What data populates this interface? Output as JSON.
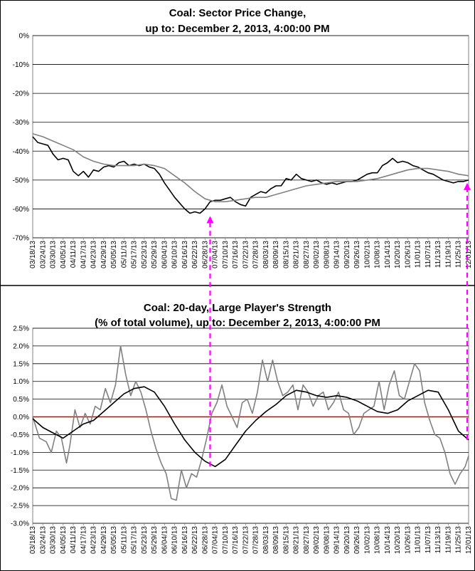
{
  "chart_data": [
    {
      "type": "line",
      "title": "Coal: Sector Price Change,",
      "subtitle": "up to: December 2, 2013, 4:00:00 PM",
      "xlabel": "",
      "ylabel": "",
      "ylim": [
        -70,
        0
      ],
      "yticks": [
        "0%",
        "-10%",
        "-20%",
        "-30%",
        "-40%",
        "-50%",
        "-60%",
        "-70%"
      ],
      "grid": true,
      "legend": "none",
      "series": [
        {
          "color": "#000000",
          "x": [
            0,
            3,
            6,
            9,
            12,
            15,
            18,
            21,
            24,
            27,
            30,
            33,
            36,
            39,
            42,
            45,
            48,
            51,
            54,
            57,
            60,
            63,
            66,
            69,
            72,
            75,
            78,
            81,
            84,
            87,
            90,
            93,
            96,
            99,
            102,
            105,
            108,
            111,
            114,
            117,
            120,
            123,
            126,
            129,
            132,
            135,
            138,
            141,
            144,
            147,
            150,
            153,
            156,
            159,
            162,
            165,
            168,
            171,
            174,
            177,
            180,
            183,
            186,
            189,
            192,
            195,
            198,
            201,
            204,
            207,
            210,
            213,
            216,
            219,
            222,
            225,
            228,
            231,
            234,
            237,
            240,
            243,
            246,
            249,
            252,
            255,
            258
          ],
          "values": [
            -35,
            -37,
            -37.5,
            -38,
            -41,
            -43,
            -42.5,
            -43,
            -47,
            -48.5,
            -47,
            -49,
            -46.5,
            -47,
            -45.5,
            -45,
            -45.5,
            -44,
            -43.5,
            -45,
            -44.5,
            -45,
            -44.5,
            -45.5,
            -46,
            -48,
            -51,
            -53.5,
            -56,
            -58,
            -60,
            -61.5,
            -61,
            -61.5,
            -60,
            -57.5,
            -57,
            -57,
            -56.5,
            -56,
            -57.5,
            -58.5,
            -59,
            -56,
            -55,
            -54,
            -54.5,
            -53,
            -52,
            -52,
            -49.5,
            -50,
            -48,
            -49.5,
            -50,
            -50.5,
            -50,
            -51,
            -51.5,
            -51,
            -51.5,
            -51,
            -50.5,
            -50.5,
            -50,
            -49,
            -48,
            -47.5,
            -47.5,
            -45,
            -44,
            -42.5,
            -44,
            -43.5,
            -44,
            -45,
            -45.5,
            -46.5,
            -47.5,
            -48,
            -49,
            -50,
            -50.5,
            -51,
            -50.5,
            -50.5,
            -50
          ]
        },
        {
          "color": "#808080",
          "x": [
            0,
            6,
            12,
            18,
            24,
            30,
            36,
            42,
            48,
            54,
            60,
            66,
            72,
            78,
            84,
            90,
            96,
            102,
            108,
            114,
            120,
            126,
            132,
            138,
            144,
            150,
            156,
            162,
            168,
            174,
            180,
            186,
            192,
            198,
            204,
            210,
            216,
            222,
            228,
            234,
            240,
            246,
            252,
            258
          ],
          "values": [
            -34,
            -35,
            -36.5,
            -38,
            -39.5,
            -42,
            -43.5,
            -44.5,
            -45,
            -45,
            -45,
            -44.5,
            -45,
            -46,
            -48.5,
            -51,
            -54,
            -56.5,
            -57.5,
            -57.5,
            -57,
            -56.5,
            -56,
            -56,
            -55,
            -54,
            -53,
            -52,
            -51.5,
            -51,
            -50.5,
            -50.5,
            -50.5,
            -50,
            -49.5,
            -48.5,
            -47.5,
            -46.5,
            -46,
            -46,
            -46.5,
            -47,
            -48,
            -48.5
          ]
        }
      ]
    },
    {
      "type": "line",
      "title": "Coal: 20-day, Large Player's Strength",
      "subtitle": "(% of total volume), up to: December 2, 2013, 4:00:00 PM",
      "xlabel": "",
      "ylabel": "",
      "ylim": [
        -3.0,
        2.5
      ],
      "yticks": [
        "2.5%",
        "2.0%",
        "1.5%",
        "1.0%",
        "0.5%",
        "0.0%",
        "-0.5%",
        "-1.0%",
        "-1.5%",
        "-2.0%",
        "-2.5%",
        "-3.0%"
      ],
      "grid": true,
      "legend": "none",
      "reference_line": {
        "y": 0,
        "color": "#cc0000"
      },
      "series": [
        {
          "color": "#808080",
          "x": [
            0,
            4,
            8,
            11,
            14,
            17,
            20,
            22,
            25,
            28,
            31,
            34,
            37,
            40,
            43,
            46,
            49,
            52,
            55,
            58,
            61,
            64,
            67,
            70,
            73,
            76,
            79,
            82,
            85,
            88,
            91,
            94,
            97,
            100,
            103,
            106,
            109,
            112,
            115,
            118,
            121,
            124,
            127,
            130,
            133,
            136,
            139,
            142,
            145,
            148,
            151,
            154,
            157,
            160,
            163,
            166,
            169,
            172,
            175,
            178,
            181,
            184,
            187,
            190,
            193,
            196,
            199,
            202,
            205,
            208,
            211,
            214,
            217,
            220,
            223,
            226,
            229,
            232,
            235,
            238,
            241,
            244,
            247,
            250,
            253,
            256,
            258
          ],
          "values": [
            0.0,
            -0.6,
            -0.7,
            -1.0,
            -0.4,
            -0.6,
            -1.3,
            -0.8,
            0.2,
            -0.3,
            0.1,
            -0.2,
            0.3,
            0.2,
            0.8,
            0.4,
            0.9,
            2.0,
            1.2,
            0.6,
            1.0,
            0.7,
            0.2,
            -0.4,
            -0.9,
            -1.3,
            -1.6,
            -2.3,
            -2.35,
            -1.5,
            -2.0,
            -1.6,
            -1.7,
            -1.2,
            -0.6,
            0.1,
            0.4,
            0.9,
            0.3,
            0.0,
            -0.3,
            0.4,
            0.5,
            0.1,
            0.7,
            1.6,
            1.0,
            1.6,
            1.0,
            0.6,
            0.7,
            0.9,
            0.2,
            0.9,
            0.7,
            0.3,
            0.6,
            0.7,
            0.2,
            0.4,
            0.7,
            0.2,
            0.1,
            -0.5,
            -0.3,
            0.1,
            0.2,
            0.3,
            1.0,
            0.2,
            0.9,
            1.3,
            0.6,
            0.5,
            1.0,
            1.5,
            1.3,
            0.4,
            -0.1,
            -0.5,
            -0.6,
            -1.0,
            -1.6,
            -1.9,
            -1.6,
            -1.4,
            -1.1
          ]
        },
        {
          "color": "#000000",
          "x": [
            0,
            6,
            12,
            18,
            24,
            30,
            36,
            42,
            48,
            54,
            60,
            66,
            72,
            78,
            84,
            90,
            96,
            102,
            108,
            114,
            120,
            126,
            132,
            138,
            144,
            150,
            156,
            162,
            168,
            174,
            180,
            186,
            192,
            198,
            204,
            210,
            216,
            222,
            228,
            234,
            240,
            246,
            252,
            258
          ],
          "values": [
            -0.05,
            -0.3,
            -0.45,
            -0.6,
            -0.4,
            -0.2,
            -0.1,
            0.15,
            0.4,
            0.65,
            0.8,
            0.85,
            0.7,
            0.3,
            -0.2,
            -0.65,
            -1.0,
            -1.25,
            -1.4,
            -1.2,
            -0.8,
            -0.4,
            -0.1,
            0.15,
            0.35,
            0.6,
            0.75,
            0.7,
            0.6,
            0.55,
            0.6,
            0.55,
            0.45,
            0.3,
            0.15,
            0.1,
            0.2,
            0.45,
            0.6,
            0.75,
            0.7,
            0.2,
            -0.4,
            -0.65
          ]
        }
      ]
    }
  ],
  "x_tick_labels": [
    "03/18/13",
    "03/24/13",
    "03/30/13",
    "04/05/13",
    "04/11/13",
    "04/17/13",
    "04/23/13",
    "04/29/13",
    "05/05/13",
    "05/11/13",
    "05/17/13",
    "05/23/13",
    "05/29/13",
    "06/04/13",
    "06/10/13",
    "06/16/13",
    "06/22/13",
    "06/28/13",
    "07/04/13",
    "07/10/13",
    "07/16/13",
    "07/22/13",
    "07/28/13",
    "08/03/13",
    "08/09/13",
    "08/15/13",
    "08/21/13",
    "08/27/13",
    "09/02/13",
    "09/08/13",
    "09/14/13",
    "09/20/13",
    "09/26/13",
    "10/02/13",
    "10/08/13",
    "10/14/13",
    "10/20/13",
    "10/26/13",
    "11/01/13",
    "11/07/13",
    "11/13/13",
    "11/19/13",
    "11/25/13",
    "12/01/13"
  ],
  "colors": {
    "arrow": "#ff00ff",
    "gridline": "#000000",
    "zero_line": "#cc0000"
  }
}
